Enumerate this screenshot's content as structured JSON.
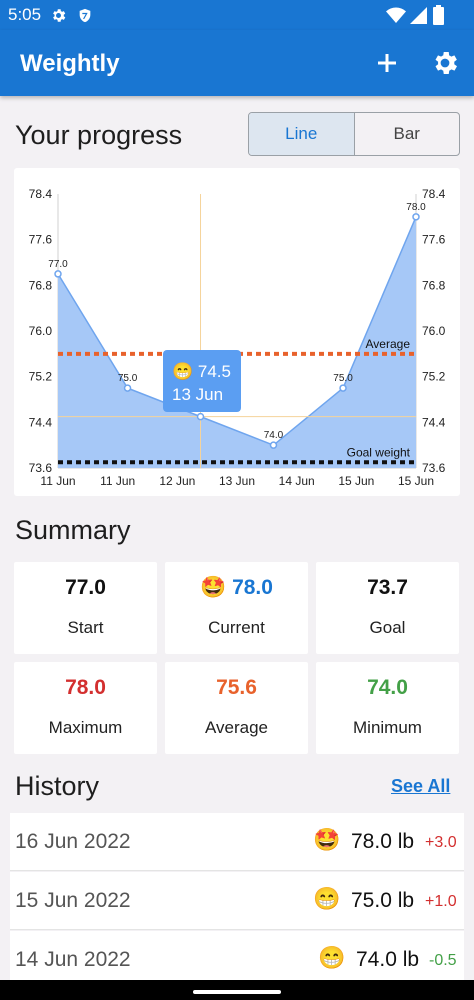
{
  "status": {
    "time": "5:05"
  },
  "app": {
    "title": "Weightly"
  },
  "progress": {
    "title": "Your progress",
    "toggle": [
      "Line",
      "Bar"
    ],
    "selected": "Line"
  },
  "chart_data": {
    "type": "area",
    "x": [
      "11 Jun",
      "11 Jun",
      "12 Jun",
      "13 Jun",
      "14 Jun",
      "15 Jun",
      "15 Jun"
    ],
    "points": [
      {
        "t": 0,
        "y": 77.0
      },
      {
        "t": 1.22,
        "y": 75.0
      },
      {
        "t": 2.5,
        "y": 74.5
      },
      {
        "t": 3.78,
        "y": 74.0
      },
      {
        "t": 5.0,
        "y": 75.0
      },
      {
        "t": 6.28,
        "y": 78.0
      }
    ],
    "point_labels": [
      "77.0",
      "75.0",
      "",
      "74.0",
      "75.0",
      "78.0"
    ],
    "ylim": [
      73.6,
      78.4
    ],
    "yticks": [
      "78.4",
      "77.6",
      "76.8",
      "76.0",
      "75.2",
      "74.4",
      "73.6"
    ],
    "average": {
      "label": "Average",
      "value": 75.6,
      "color": "#e8622c"
    },
    "goal": {
      "label": "Goal weight",
      "value": 73.7,
      "color": "#111111"
    },
    "tooltip": {
      "emoji": "😁",
      "value": "74.5",
      "date": "13 Jun"
    },
    "fill": "#a6c8f7",
    "line": "#6fa5ee"
  },
  "summary": {
    "title": "Summary",
    "cards": [
      {
        "emoji": "",
        "value": "77.0",
        "label": "Start",
        "color": "#111111"
      },
      {
        "emoji": "🤩",
        "value": "78.0",
        "label": "Current",
        "color": "#1976d2"
      },
      {
        "emoji": "",
        "value": "73.7",
        "label": "Goal",
        "color": "#111111"
      },
      {
        "emoji": "",
        "value": "78.0",
        "label": "Maximum",
        "color": "#d32f2f"
      },
      {
        "emoji": "",
        "value": "75.6",
        "label": "Average",
        "color": "#e8622c"
      },
      {
        "emoji": "",
        "value": "74.0",
        "label": "Minimum",
        "color": "#43a047"
      }
    ]
  },
  "history": {
    "title": "History",
    "see_all": "See All",
    "rows": [
      {
        "date": "16 Jun 2022",
        "emoji": "🤩",
        "weight": "78.0 lb",
        "delta": "+3.0",
        "delta_color": "#d32f2f"
      },
      {
        "date": "15 Jun 2022",
        "emoji": "😁",
        "weight": "75.0 lb",
        "delta": "+1.0",
        "delta_color": "#d32f2f"
      },
      {
        "date": "14 Jun 2022",
        "emoji": "😁",
        "weight": "74.0 lb",
        "delta": "-0.5",
        "delta_color": "#43a047"
      }
    ]
  }
}
